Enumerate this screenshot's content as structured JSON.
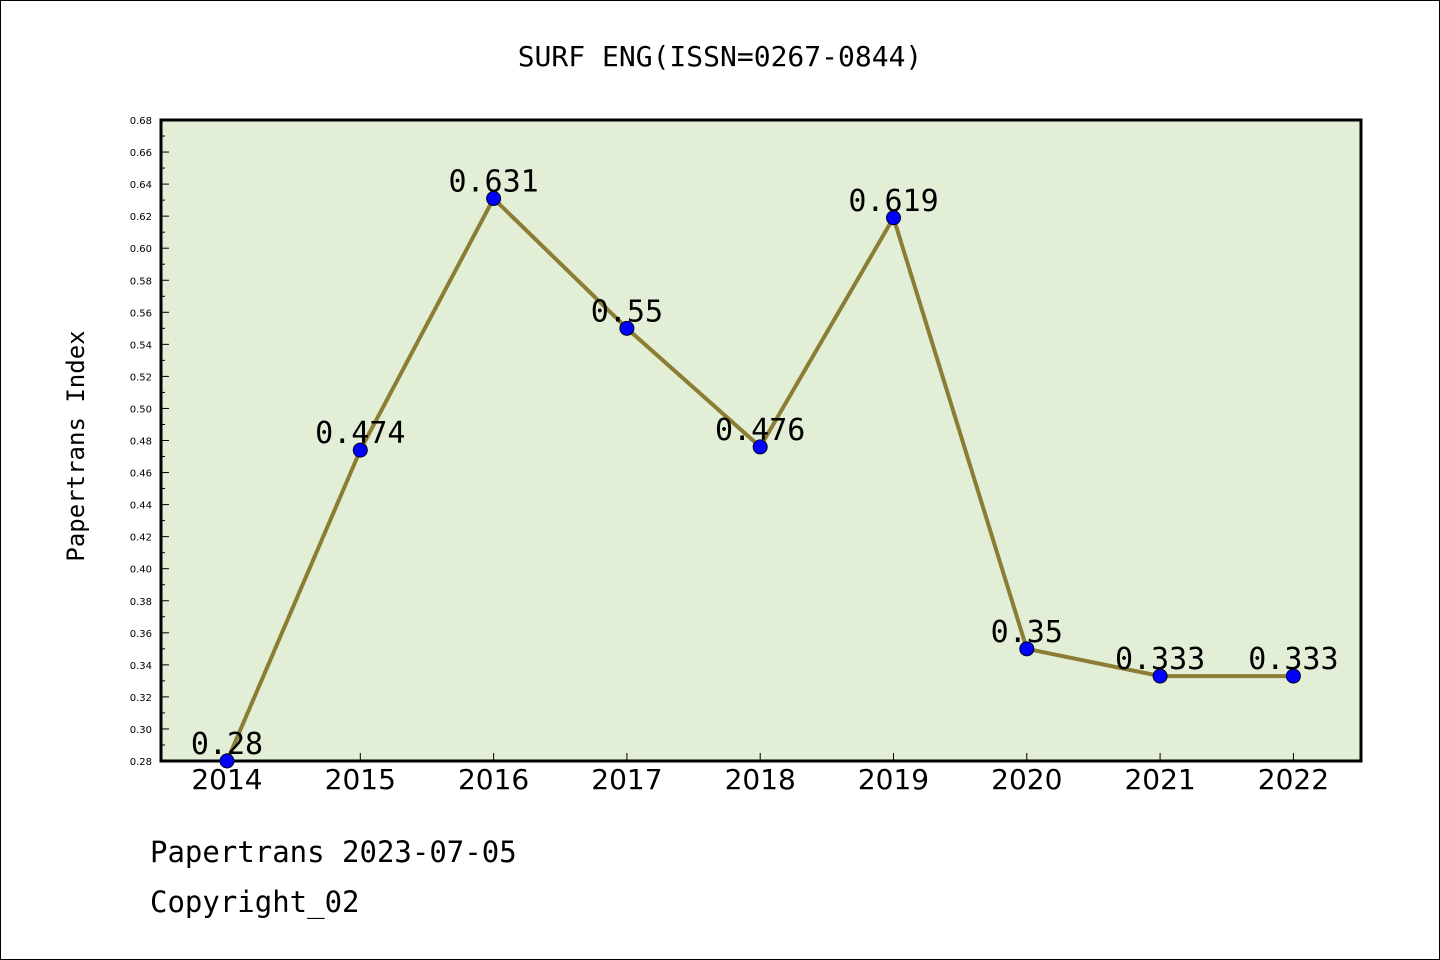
{
  "footer": {
    "line1": "Papertrans 2023-07-05",
    "line2": "Copyright_02"
  },
  "colors": {
    "plot_background": "#e2efd6",
    "line": "#8b7d33",
    "marker": "#0000ff",
    "frame": "#000000"
  },
  "chart_data": {
    "type": "line",
    "title": "SURF ENG(ISSN=0267-0844)",
    "xlabel": "",
    "ylabel": "Papertrans Index",
    "categories": [
      "2014",
      "2015",
      "2016",
      "2017",
      "2018",
      "2019",
      "2020",
      "2021",
      "2022"
    ],
    "series": [
      {
        "values": [
          0.28,
          0.474,
          0.631,
          0.55,
          0.476,
          0.619,
          0.35,
          0.333,
          0.333
        ],
        "labels": [
          "0.28",
          "0.474",
          "0.631",
          "0.55",
          "0.476",
          "0.619",
          "0.35",
          "0.333",
          "0.333"
        ]
      }
    ],
    "ylim": [
      0.28,
      0.68
    ],
    "yticks": [
      "0.28",
      "0.30",
      "0.32",
      "0.34",
      "0.36",
      "0.38",
      "0.40",
      "0.42",
      "0.44",
      "0.46",
      "0.48",
      "0.50",
      "0.52",
      "0.54",
      "0.56",
      "0.58",
      "0.60",
      "0.62",
      "0.64",
      "0.66",
      "0.68"
    ],
    "grid": false,
    "legend": "none"
  }
}
